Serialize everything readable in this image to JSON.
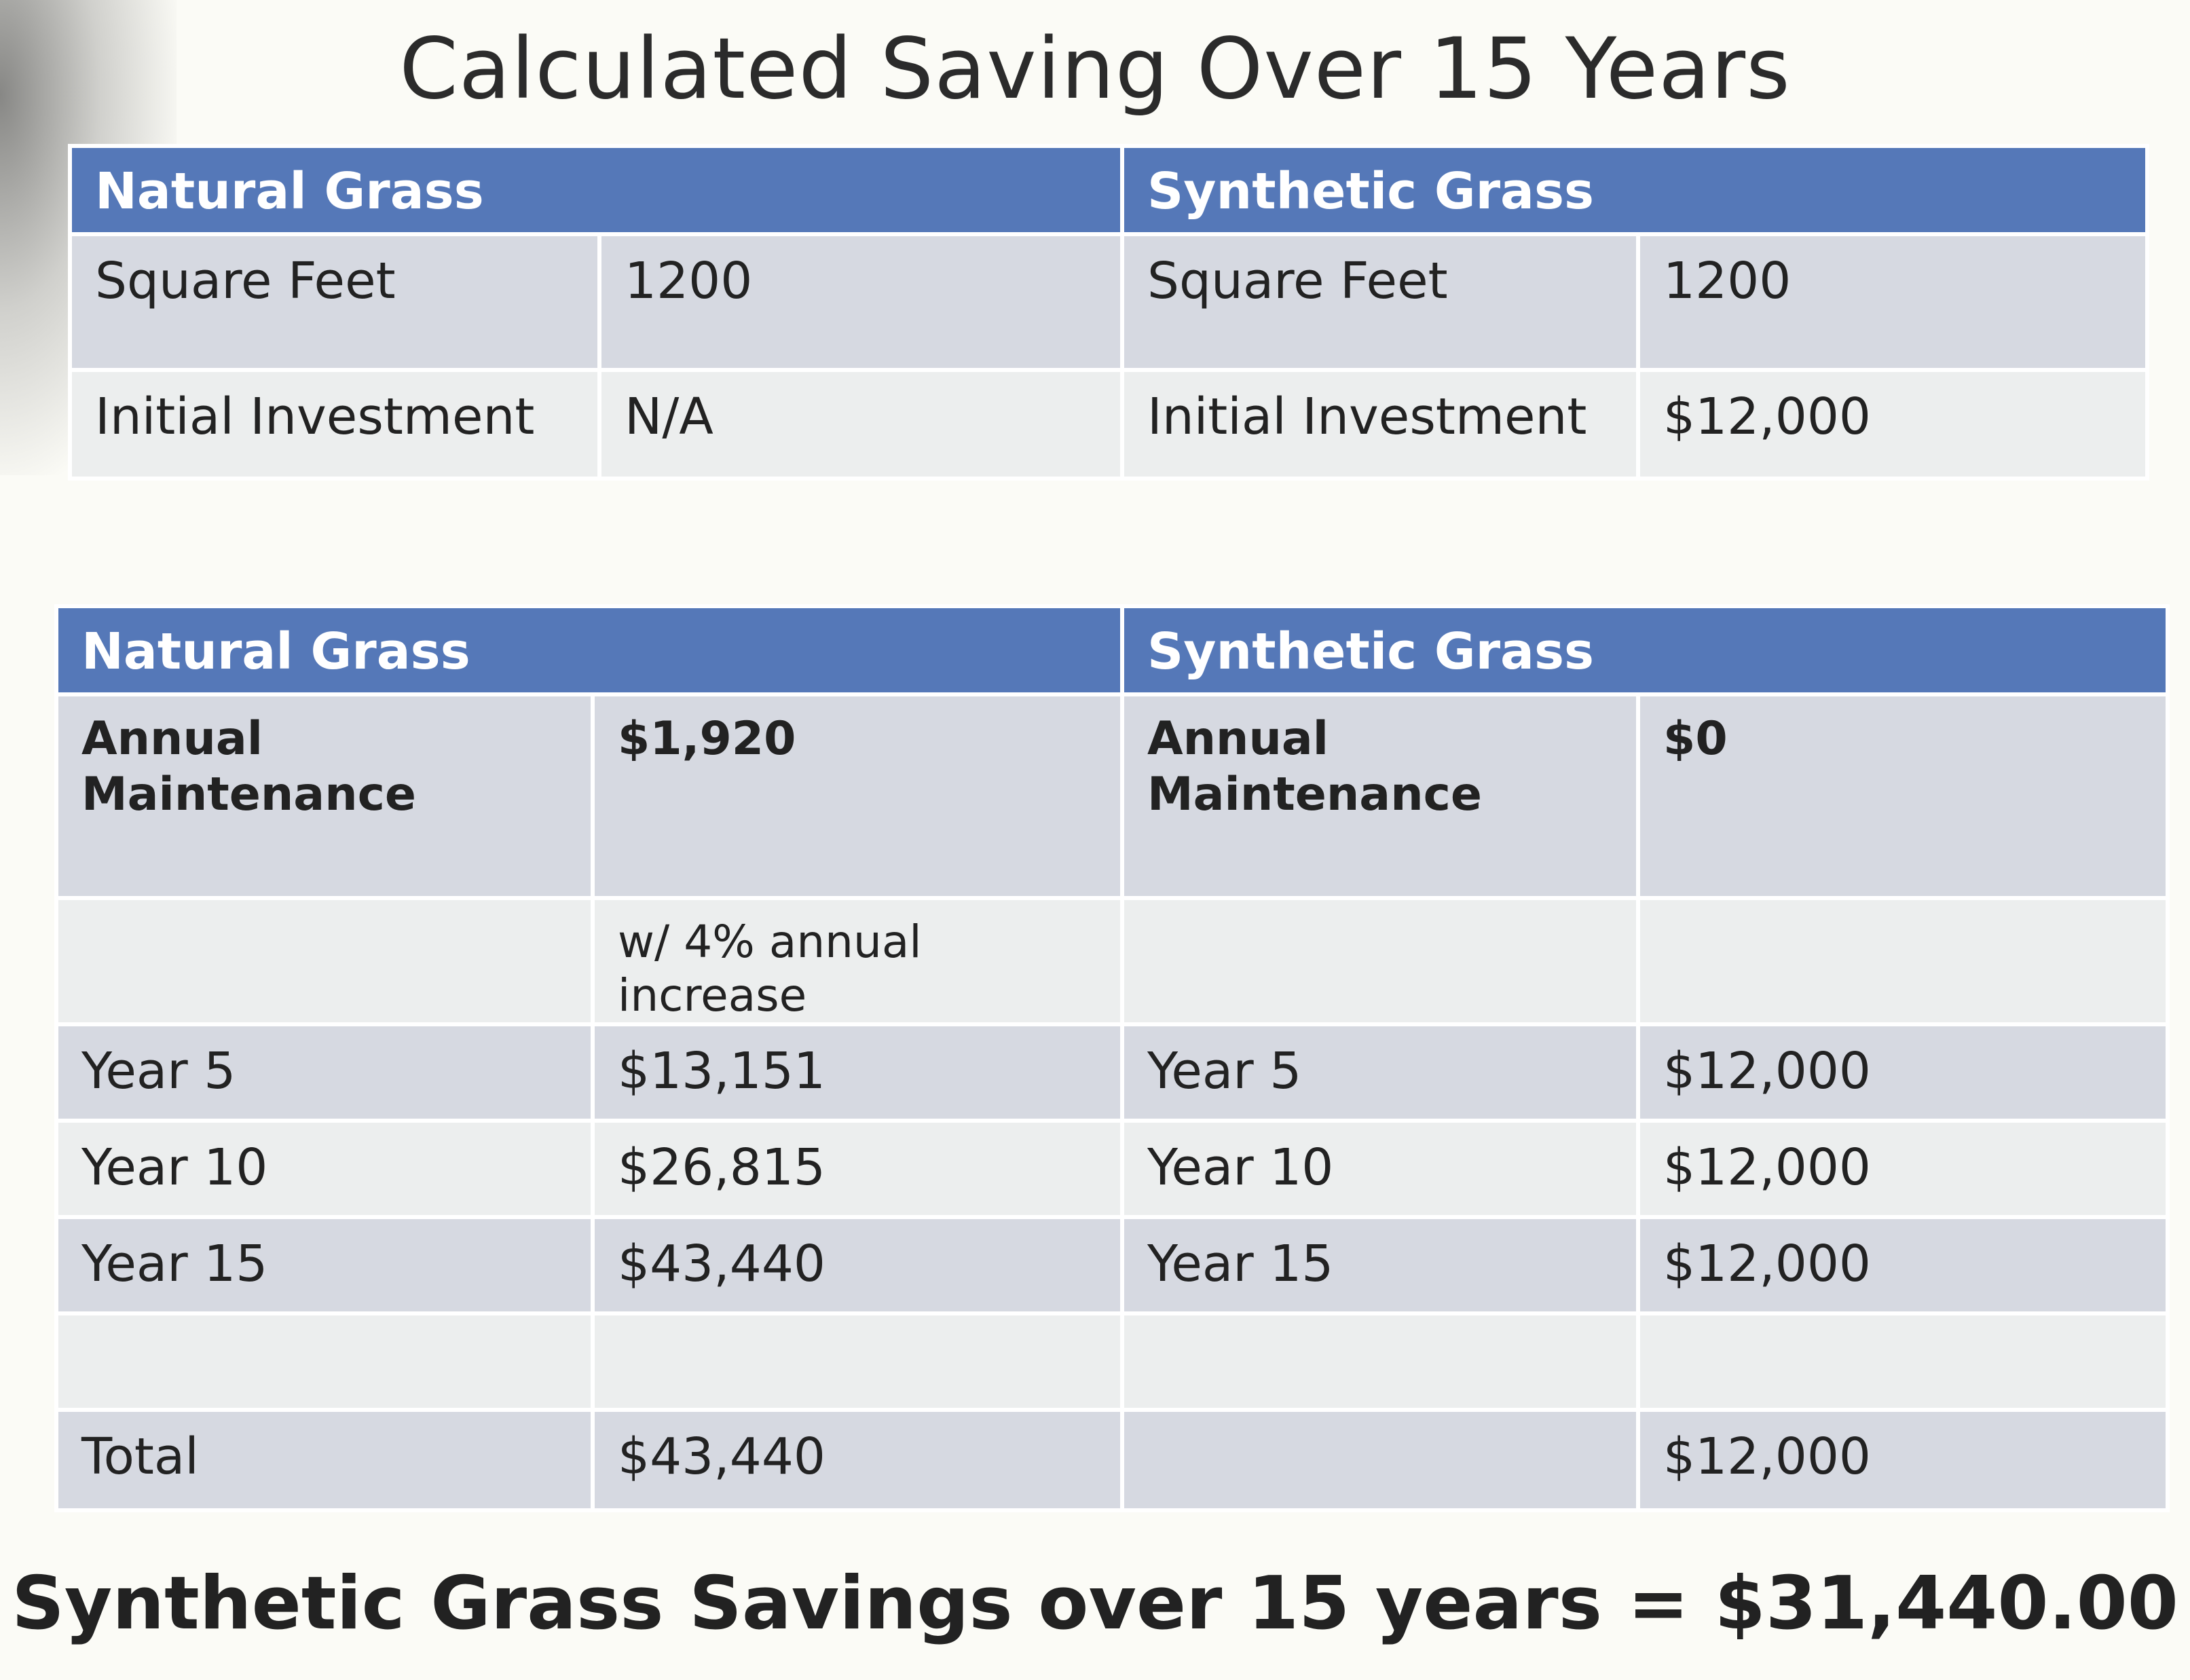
{
  "title": "Calculated Saving Over 15 Years",
  "initial_table": {
    "natural": {
      "header": "Natural Grass",
      "rows": [
        {
          "label": "Square Feet",
          "value": "1200"
        },
        {
          "label": "Initial Investment",
          "value": "N/A"
        }
      ]
    },
    "synthetic": {
      "header": "Synthetic Grass",
      "rows": [
        {
          "label": "Square Feet",
          "value": "1200"
        },
        {
          "label": "Initial Investment",
          "value": "$12,000"
        }
      ]
    }
  },
  "maintenance_table": {
    "natural": {
      "header": "Natural Grass",
      "annual_label": "Annual Maintenance",
      "annual_value": "$1,920",
      "note": "w/ 4% annual increase",
      "years": [
        {
          "label": "Year 5",
          "value": "$13,151"
        },
        {
          "label": "Year 10",
          "value": "$26,815"
        },
        {
          "label": "Year 15",
          "value": "$43,440"
        }
      ],
      "total_label": "Total",
      "total_value": "$43,440"
    },
    "synthetic": {
      "header": "Synthetic Grass",
      "annual_label": "Annual Maintenance",
      "annual_value": "$0",
      "years": [
        {
          "label": "Year 5",
          "value": "$12,000"
        },
        {
          "label": "Year 10",
          "value": "$12,000"
        },
        {
          "label": "Year 15",
          "value": "$12,000"
        }
      ],
      "total_value": "$12,000"
    }
  },
  "summary": "Synthetic Grass Savings over 15 years = $31,440.00",
  "colors": {
    "header_bg": "#5578b8",
    "row_dark": "#d6d9e1",
    "row_light": "#eceeee",
    "page_bg": "#fbfbf6"
  }
}
